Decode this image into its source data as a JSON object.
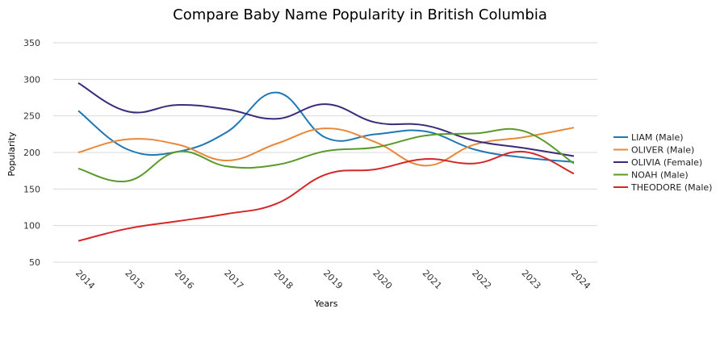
{
  "chart_data": {
    "type": "line",
    "title": "Compare Baby Name Popularity in British Columbia",
    "xlabel": "Years",
    "ylabel": "Popularity",
    "categories": [
      "2014",
      "2015",
      "2016",
      "2017",
      "2018",
      "2019",
      "2020",
      "2021",
      "2022",
      "2023",
      "2024"
    ],
    "y_ticks": [
      50,
      100,
      150,
      200,
      250,
      300,
      350
    ],
    "ylim": [
      50,
      350
    ],
    "grid": "horizontal",
    "legend_position": "right",
    "series": [
      {
        "name": "LIAM (Male)",
        "color": "#1f77b4",
        "values": [
          257,
          204,
          201,
          228,
          282,
          220,
          225,
          229,
          204,
          193,
          187
        ]
      },
      {
        "name": "OLIVER (Male)",
        "color": "#e8883a",
        "values": [
          200,
          218,
          211,
          189,
          212,
          233,
          214,
          182,
          211,
          221,
          234
        ]
      },
      {
        "name": "OLIVIA (Female)",
        "color": "#3b2a7a",
        "values": [
          295,
          256,
          265,
          259,
          246,
          266,
          241,
          237,
          216,
          206,
          195
        ]
      },
      {
        "name": "NOAH (Male)",
        "color": "#5a9a2a",
        "values": [
          178,
          161,
          201,
          181,
          183,
          202,
          207,
          223,
          226,
          229,
          185
        ]
      },
      {
        "name": "THEODORE (Male)",
        "color": "#d62728",
        "values": [
          79,
          96,
          106,
          116,
          130,
          170,
          177,
          191,
          185,
          201,
          171
        ]
      }
    ]
  }
}
